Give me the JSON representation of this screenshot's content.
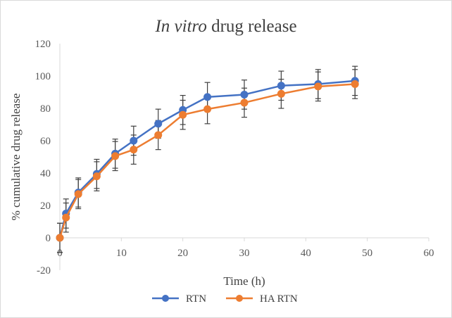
{
  "chart_data": {
    "type": "line",
    "title_italic": "In vitro",
    "title_rest": " drug release",
    "xlabel": "Time (h)",
    "ylabel": "% cumulative drug release",
    "xlim": [
      0,
      60
    ],
    "ylim": [
      -20,
      120
    ],
    "xticks": [
      0,
      10,
      20,
      30,
      40,
      50,
      60
    ],
    "yticks": [
      -20,
      0,
      20,
      40,
      60,
      80,
      100,
      120
    ],
    "grid": false,
    "legend_position": "bottom",
    "x": [
      0,
      1,
      3,
      6,
      9,
      12,
      16,
      20,
      24,
      30,
      36,
      42,
      48
    ],
    "series": [
      {
        "name": "RTN",
        "color": "#4472C4",
        "values": [
          0,
          15,
          28,
          39.5,
          52,
          60,
          70.5,
          79,
          87,
          88.5,
          94,
          95,
          97
        ],
        "errors": [
          9,
          9,
          9,
          9,
          9,
          9,
          9,
          9,
          9,
          9,
          9,
          9,
          9
        ]
      },
      {
        "name": "HA RTN",
        "color": "#ED7D31",
        "values": [
          0,
          12.5,
          27,
          38,
          50.5,
          54.5,
          63.5,
          76,
          79.5,
          83.5,
          89,
          93.5,
          95
        ],
        "errors": [
          9,
          9,
          9,
          9,
          9,
          9,
          9,
          9,
          9,
          9,
          9,
          9,
          9
        ]
      }
    ]
  }
}
